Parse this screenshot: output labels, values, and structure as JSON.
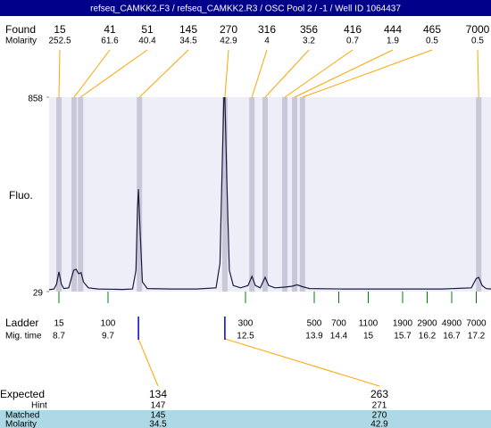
{
  "header": {
    "title": "refseq_CAMKK2.F3 / refseq_CAMKK2.R3 / OSC Pool 2 / -1 / Well ID 1064437"
  },
  "found": {
    "label": "Found",
    "molarity_label": "Molarity",
    "peaks": [
      {
        "size": 15,
        "molarity": 252.5,
        "x": 8.7
      },
      {
        "size": 41,
        "molarity": 61.6,
        "x": 9.01
      },
      {
        "size": 51,
        "molarity": 40.4,
        "x": 9.14
      },
      {
        "size": 145,
        "molarity": 34.5,
        "x": 10.34
      },
      {
        "size": 270,
        "molarity": 42.9,
        "x": 12.08
      },
      {
        "size": 316,
        "molarity": 4,
        "x": 12.63
      },
      {
        "size": 356,
        "molarity": 3.2,
        "x": 12.9
      },
      {
        "size": 416,
        "molarity": 0.7,
        "x": 13.3
      },
      {
        "size": 444,
        "molarity": 1.9,
        "x": 13.5
      },
      {
        "size": 465,
        "molarity": 0.5,
        "x": 13.66
      },
      {
        "size": 7000,
        "molarity": 0.5,
        "x": 17.25
      }
    ]
  },
  "chart_data": {
    "type": "line",
    "ylabel": "Fluo.",
    "xlim": [
      8.5,
      17.5
    ],
    "ylim": [
      29,
      858
    ],
    "yticks": [
      29,
      858
    ],
    "color": "#1a1a40",
    "x": [
      8.5,
      8.6,
      8.65,
      8.7,
      8.75,
      8.8,
      8.9,
      9.0,
      9.05,
      9.1,
      9.15,
      9.2,
      9.3,
      9.5,
      10.0,
      10.2,
      10.27,
      10.3,
      10.32,
      10.35,
      10.4,
      10.5,
      11.0,
      11.5,
      11.9,
      11.98,
      12.03,
      12.06,
      12.08,
      12.12,
      12.17,
      12.25,
      12.4,
      12.55,
      12.63,
      12.7,
      12.8,
      12.9,
      12.97,
      13.1,
      13.3,
      13.45,
      13.55,
      13.66,
      13.8,
      14.5,
      15.5,
      16.5,
      17.1,
      17.2,
      17.25,
      17.32,
      17.4,
      17.5
    ],
    "values": [
      37,
      40,
      60,
      113,
      60,
      42,
      45,
      120,
      124,
      105,
      110,
      70,
      45,
      40,
      38,
      40,
      120,
      380,
      466,
      300,
      70,
      42,
      40,
      40,
      45,
      150,
      600,
      858,
      858,
      500,
      120,
      55,
      45,
      55,
      94,
      55,
      45,
      90,
      55,
      45,
      48,
      52,
      58,
      50,
      42,
      40,
      40,
      40,
      45,
      85,
      90,
      55,
      42,
      40
    ]
  },
  "ladder": {
    "label": "Ladder",
    "time_label": "Mig. time",
    "sizes": [
      15,
      100,
      300,
      500,
      700,
      1100,
      1900,
      2900,
      4900,
      7000
    ],
    "times": [
      8.7,
      9.7,
      12.5,
      13.9,
      14.4,
      15,
      15.7,
      16.2,
      16.7,
      17.2
    ]
  },
  "expected": {
    "label": "Expected",
    "hint_label": "Hint",
    "matched_label": "Matched",
    "molarity_label": "Molarity",
    "items": [
      {
        "expected": 134,
        "hint": 147,
        "matched": 145,
        "molarity": 34.5,
        "x": 10.32
      },
      {
        "expected": 263,
        "hint": 271,
        "matched": 270,
        "molarity": 42.9,
        "x": 12.08
      }
    ]
  }
}
